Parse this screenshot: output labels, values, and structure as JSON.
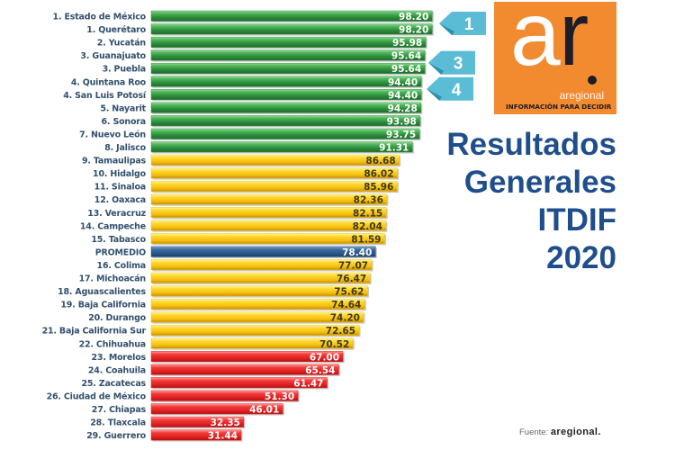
{
  "chart_data": {
    "type": "bar",
    "orientation": "horizontal",
    "title": "Resultados Generales ITDIF 2020",
    "title_lines": [
      "Resultados",
      "Generales",
      "ITDIF",
      "2020"
    ],
    "xlabel": "",
    "ylabel": "",
    "xlim": [
      0,
      100
    ],
    "grid": false,
    "categories": [
      "1. Estado de México",
      "1. Querétaro",
      "2. Yucatán",
      "3. Guanajuato",
      "3. Puebla",
      "4. Quintana Roo",
      "4. San Luis Potosí",
      "5. Nayarit",
      "6. Sonora",
      "7. Nuevo León",
      "8. Jalisco",
      "9. Tamaulipas",
      "10. Hidalgo",
      "11. Sinaloa",
      "12. Oaxaca",
      "13. Veracruz",
      "14. Campeche",
      "15. Tabasco",
      "PROMEDIO",
      "16. Colima",
      "17. Michoacán",
      "18. Aguascalientes",
      "19. Baja California",
      "20. Durango",
      "21. Baja California Sur",
      "22. Chihuahua",
      "23. Morelos",
      "24. Coahuila",
      "25. Zacatecas",
      "26. Ciudad de México",
      "27. Chiapas",
      "28. Tlaxcala",
      "29. Guerrero"
    ],
    "values": [
      98.2,
      98.2,
      95.98,
      95.64,
      95.64,
      94.4,
      94.4,
      94.28,
      93.98,
      93.75,
      91.31,
      86.68,
      86.02,
      85.96,
      82.36,
      82.15,
      82.04,
      81.59,
      78.4,
      77.07,
      76.47,
      75.62,
      74.64,
      74.2,
      72.65,
      70.52,
      67.0,
      65.54,
      61.47,
      51.3,
      46.01,
      32.35,
      31.44
    ],
    "value_labels": [
      "98.20",
      "98.20",
      "95.98",
      "95.64",
      "95.64",
      "94.40",
      "94.40",
      "94.28",
      "93.98",
      "93.75",
      "91.31",
      "86.68",
      "86.02",
      "85.96",
      "82.36",
      "82.15",
      "82.04",
      "81.59",
      "78.40",
      "77.07",
      "76.47",
      "75.62",
      "74.64",
      "74.20",
      "72.65",
      "70.52",
      "67.00",
      "65.54",
      "61.47",
      "51.30",
      "46.01",
      "32.35",
      "31.44"
    ],
    "groups": [
      "high",
      "high",
      "high",
      "high",
      "high",
      "high",
      "high",
      "high",
      "high",
      "high",
      "high",
      "mid",
      "mid",
      "mid",
      "mid",
      "mid",
      "mid",
      "mid",
      "avg",
      "mid",
      "mid",
      "mid",
      "mid",
      "mid",
      "mid",
      "mid",
      "low",
      "low",
      "low",
      "low",
      "low",
      "low",
      "low"
    ],
    "group_colors": {
      "high": "#3a9a4a",
      "mid": "#f5c518",
      "avg": "#2c5a8a",
      "low": "#e52a2a"
    },
    "rank_callouts": [
      {
        "label": "1",
        "rows": [
          0,
          1
        ]
      },
      {
        "label": "3",
        "rows": [
          3,
          4
        ]
      },
      {
        "label": "4",
        "rows": [
          5,
          6
        ]
      }
    ],
    "callout_color": "#5bbcd6"
  },
  "logo": {
    "letters_white": "a",
    "letters_dark": "r",
    "brand": "aregional",
    "tagline": "INFORMACIÓN PARA DECIDIR"
  },
  "source": {
    "prefix": "Fuente:",
    "name": "aregional."
  }
}
